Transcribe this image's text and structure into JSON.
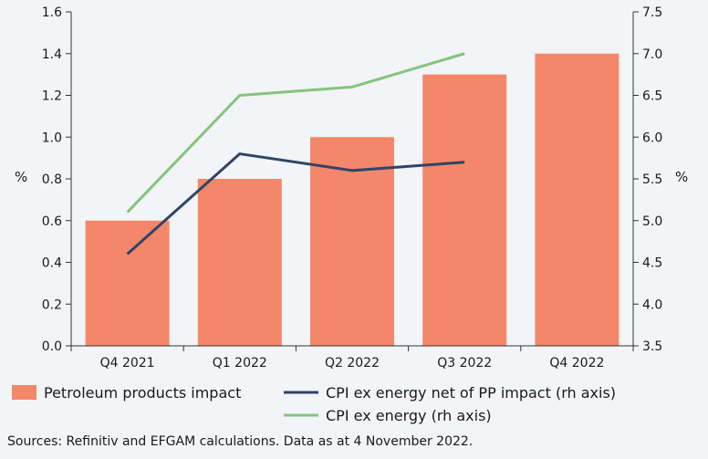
{
  "chart_data": {
    "type": "bar",
    "categories": [
      "Q4 2021",
      "Q1 2022",
      "Q2 2022",
      "Q3 2022",
      "Q4 2022"
    ],
    "series": [
      {
        "name": "Petroleum products impact",
        "kind": "bar",
        "axis": "left",
        "color": "#f4876a",
        "values": [
          0.6,
          0.8,
          1.0,
          1.3,
          1.4
        ]
      },
      {
        "name": "CPI ex energy net of PP impact (rh axis)",
        "kind": "line",
        "axis": "right",
        "color": "#2f4466",
        "values": [
          4.6,
          5.8,
          5.6,
          5.7,
          null
        ]
      },
      {
        "name": "CPI ex energy (rh axis)",
        "kind": "line",
        "axis": "right",
        "color": "#85c47c",
        "values": [
          5.1,
          6.5,
          6.6,
          7.0,
          null
        ]
      }
    ],
    "ylabel": "%",
    "y2label": "%",
    "ylim": [
      0,
      1.6
    ],
    "y2lim": [
      3.5,
      7.5
    ],
    "yticks": [
      "0.0",
      "0.2",
      "0.4",
      "0.6",
      "0.8",
      "1.0",
      "1.2",
      "1.4",
      "1.6"
    ],
    "y2ticks": [
      "3.5",
      "4.0",
      "4.5",
      "5.0",
      "5.5",
      "6.0",
      "6.5",
      "7.0",
      "7.5"
    ],
    "grid": false,
    "legend_position": "bottom"
  },
  "source_note": "Sources: Refinitiv and EFGAM calculations. Data as at 4 November 2022."
}
